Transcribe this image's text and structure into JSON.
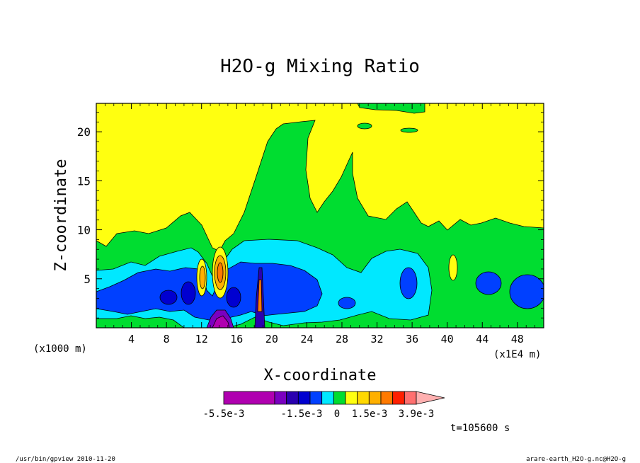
{
  "chart_data": {
    "type": "heatmap",
    "title": "H2O-g Mixing Ratio",
    "xlabel": "X-coordinate",
    "ylabel": "Z-coordinate",
    "x_unit_left": "(x1000 m)",
    "x_unit_right": "(x1E4 m)",
    "xlim": [
      0,
      51
    ],
    "ylim": [
      0,
      22.9
    ],
    "x_ticks": [
      "4",
      "8",
      "12",
      "16",
      "20",
      "24",
      "28",
      "32",
      "36",
      "40",
      "44",
      "48"
    ],
    "y_ticks": [
      "5",
      "10",
      "15",
      "20"
    ],
    "colorbar": {
      "levels": [
        "-5.5e-3",
        "-1.5e-3",
        "0",
        "1.5e-3",
        "3.9e-3"
      ],
      "colors": [
        "#b000b0",
        "#7a00c0",
        "#2a00b0",
        "#0000d0",
        "#0040ff",
        "#00e8ff",
        "#00dd30",
        "#ffff10",
        "#ffd800",
        "#ffb000",
        "#ff7a00",
        "#ff2000",
        "#ff7070",
        "#ffb0b0"
      ]
    },
    "time_label": "t=105600 s",
    "footer_left": "/usr/bin/gpview  2010-11-20",
    "footer_right": "arare-earth_H2O-g.nc@H2O-g"
  }
}
